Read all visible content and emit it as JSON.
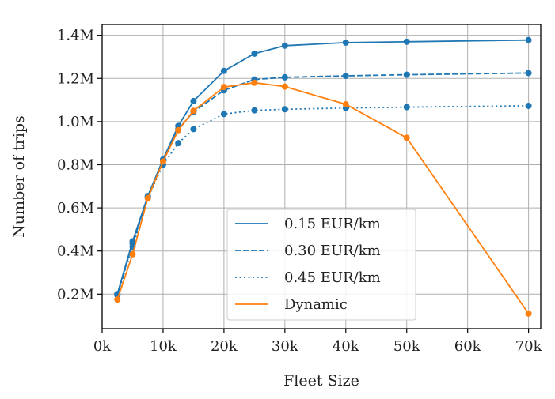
{
  "chart_data": {
    "type": "line",
    "xlabel": "Fleet Size",
    "ylabel": "Number of trips",
    "xlim": [
      0,
      72000
    ],
    "ylim": [
      40000,
      1450000
    ],
    "grid": true,
    "legend_position": "bottom-center",
    "x_ticks": [
      0,
      10000,
      20000,
      30000,
      40000,
      50000,
      60000,
      70000
    ],
    "x_tick_labels": [
      "0k",
      "10k",
      "20k",
      "30k",
      "40k",
      "50k",
      "60k",
      "70k"
    ],
    "y_ticks": [
      200000,
      400000,
      600000,
      800000,
      1000000,
      1200000,
      1400000
    ],
    "y_tick_labels": [
      "0.2M",
      "0.4M",
      "0.6M",
      "0.8M",
      "1.0M",
      "1.2M",
      "1.4M"
    ],
    "series": [
      {
        "name": "0.15 EUR/km",
        "color": "#1f77b4",
        "line_style": "solid",
        "x": [
          2500,
          5000,
          7500,
          10000,
          12500,
          15000,
          20000,
          25000,
          30000,
          40000,
          50000,
          70000
        ],
        "y": [
          200000,
          445000,
          655000,
          825000,
          980000,
          1095000,
          1235000,
          1315000,
          1352000,
          1366000,
          1370000,
          1378000
        ]
      },
      {
        "name": "0.30 EUR/km",
        "color": "#1f77b4",
        "line_style": "dashed",
        "x": [
          2500,
          5000,
          7500,
          10000,
          12500,
          15000,
          20000,
          25000,
          30000,
          40000,
          50000,
          70000
        ],
        "y": [
          200000,
          435000,
          650000,
          820000,
          965000,
          1045000,
          1145000,
          1195000,
          1205000,
          1212000,
          1217000,
          1225000
        ]
      },
      {
        "name": "0.45 EUR/km",
        "color": "#1f77b4",
        "line_style": "dotted",
        "x": [
          2500,
          5000,
          7500,
          10000,
          12500,
          15000,
          20000,
          25000,
          30000,
          40000,
          50000,
          70000
        ],
        "y": [
          195000,
          420000,
          645000,
          800000,
          900000,
          965000,
          1035000,
          1052000,
          1057000,
          1063000,
          1067000,
          1073000
        ]
      },
      {
        "name": "Dynamic",
        "color": "#ff7f0e",
        "line_style": "solid",
        "x": [
          2500,
          5000,
          7500,
          10000,
          12500,
          15000,
          20000,
          25000,
          30000,
          40000,
          50000,
          70000
        ],
        "y": [
          175000,
          385000,
          645000,
          815000,
          960000,
          1050000,
          1160000,
          1180000,
          1162000,
          1080000,
          925000,
          110000
        ]
      }
    ]
  }
}
